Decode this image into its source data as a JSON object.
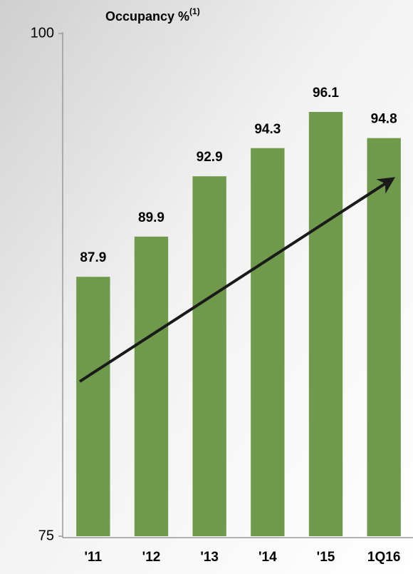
{
  "chart_data": {
    "type": "bar",
    "title": "Occupancy %",
    "title_superscript": "(1)",
    "categories": [
      "'11",
      "'12",
      "'13",
      "'14",
      "'15",
      "1Q16"
    ],
    "values": [
      87.9,
      89.9,
      92.9,
      94.3,
      96.1,
      94.8
    ],
    "color": "#6f9a4c",
    "ylim": [
      75,
      100
    ],
    "yticks": [
      75,
      100
    ],
    "grid": false
  }
}
